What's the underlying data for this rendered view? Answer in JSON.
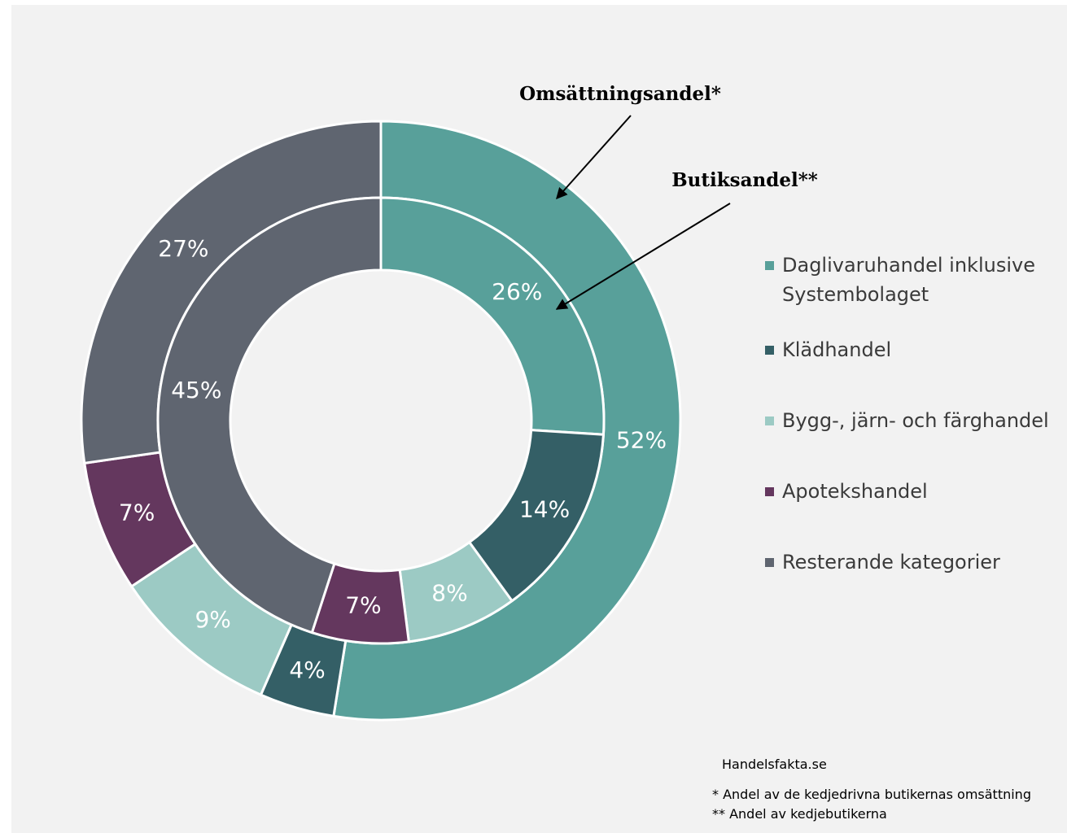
{
  "chart_data": {
    "type": "donut",
    "categories": [
      "Daglivaruhandel inklusive Systembolaget",
      "Klädhandel",
      "Bygg-, järn- och färghandel",
      "Apotekshandel",
      "Resterande kategorier"
    ],
    "colors": [
      "#58a09a",
      "#345f66",
      "#9ccac4",
      "#64375e",
      "#5f6570"
    ],
    "series": [
      {
        "name": "Omsättningsandel*",
        "values": [
          52,
          4,
          9,
          7,
          27
        ],
        "value_labels": [
          "52%",
          "4%",
          "9%",
          "7%",
          "27%"
        ]
      },
      {
        "name": "Butiksandel**",
        "values": [
          26,
          14,
          8,
          7,
          45
        ],
        "value_labels": [
          "26%",
          "14%",
          "8%",
          "7%",
          "45%"
        ]
      }
    ],
    "source": "Handelsfakta.se",
    "notes": [
      "* Andel av de kedjedrivna butikernas omsättning",
      "** Andel av kedjebutikerna"
    ]
  }
}
